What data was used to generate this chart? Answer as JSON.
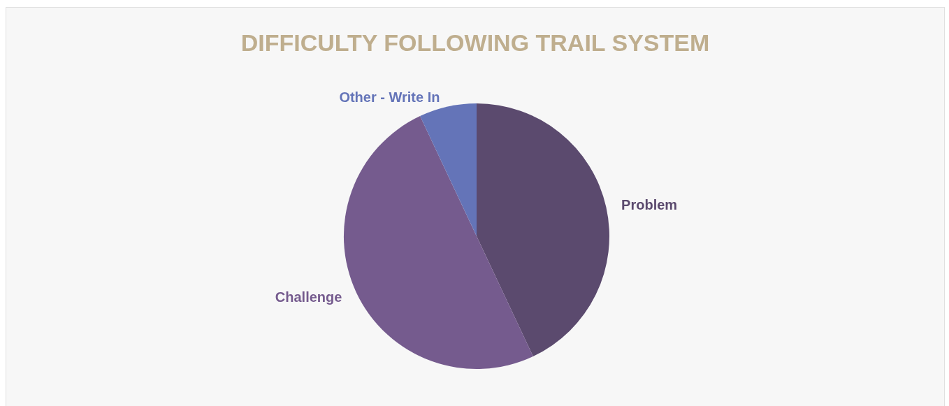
{
  "chart_data": {
    "type": "pie",
    "title": "DIFFICULTY FOLLOWING TRAIL SYSTEM",
    "categories": [
      "Problem",
      "Challenge",
      "Other - Write In"
    ],
    "values": [
      43,
      50,
      7
    ],
    "colors": [
      "#5b4a6e",
      "#755b8e",
      "#6474b8"
    ],
    "legend": false
  }
}
